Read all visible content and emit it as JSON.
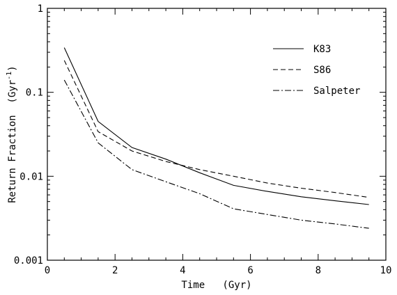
{
  "chart_data": {
    "type": "line",
    "xlabel": "Time   (Gyr)",
    "ylabel_main": "Return Fraction  (Gyr",
    "ylabel_sup": "-1",
    "ylabel_close": ")",
    "xlim": [
      0,
      10
    ],
    "ylim": [
      0.001,
      1
    ],
    "y_scale": "log",
    "grid": false,
    "legend_position": "top-right",
    "x_ticks": [
      0,
      2,
      4,
      6,
      8,
      10
    ],
    "x_tick_labels": [
      "0",
      "2",
      "4",
      "6",
      "8",
      "10"
    ],
    "y_ticks": [
      0.001,
      0.01,
      0.1,
      1
    ],
    "y_tick_labels": [
      "0.001",
      "0.01",
      "0.1",
      "1"
    ],
    "series": [
      {
        "name": "K83",
        "dash": "solid",
        "x": [
          0.5,
          1.5,
          2.5,
          3.5,
          4.5,
          5.5,
          6.5,
          7.5,
          8.5,
          9.5
        ],
        "y": [
          0.34,
          0.045,
          0.022,
          0.016,
          0.011,
          0.0078,
          0.0066,
          0.0057,
          0.0051,
          0.0046
        ]
      },
      {
        "name": "S86",
        "dash": "dashed",
        "x": [
          0.5,
          1.5,
          2.5,
          3.5,
          4.5,
          5.5,
          6.5,
          7.5,
          8.5,
          9.5
        ],
        "y": [
          0.24,
          0.034,
          0.02,
          0.015,
          0.012,
          0.01,
          0.0083,
          0.0072,
          0.0064,
          0.0056
        ]
      },
      {
        "name": "Salpeter",
        "dash": "dash-dot",
        "x": [
          0.5,
          1.5,
          2.5,
          3.5,
          4.5,
          5.5,
          6.5,
          7.5,
          8.5,
          9.5
        ],
        "y": [
          0.14,
          0.025,
          0.012,
          0.0086,
          0.0062,
          0.0041,
          0.0035,
          0.003,
          0.0027,
          0.0024
        ]
      }
    ]
  }
}
